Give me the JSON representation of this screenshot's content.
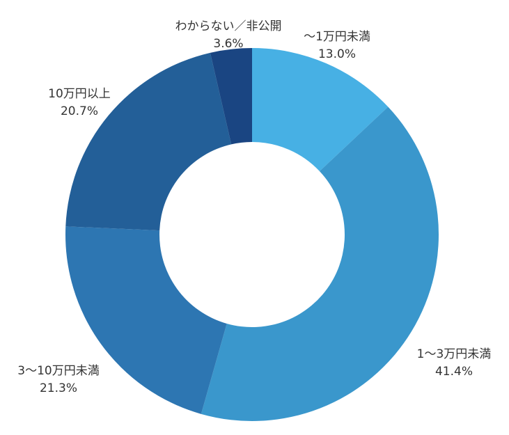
{
  "chart_data": {
    "type": "pie",
    "donut": true,
    "title": "",
    "start_angle_deg": 0,
    "direction": "clockwise",
    "slices": [
      {
        "label": "～1万円未満",
        "value": 13.0,
        "value_label": "13.0%",
        "color": "#47b0e4"
      },
      {
        "label": "1～3万円未満",
        "value": 41.4,
        "value_label": "41.4%",
        "color": "#3a97cc"
      },
      {
        "label": "3～10万円未満",
        "value": 21.3,
        "value_label": "21.3%",
        "color": "#2d76b2"
      },
      {
        "label": "10万円以上",
        "value": 20.7,
        "value_label": "20.7%",
        "color": "#235f98"
      },
      {
        "label": "わからない／非公開",
        "value": 3.6,
        "value_label": "3.6%",
        "color": "#1a4582"
      }
    ]
  }
}
